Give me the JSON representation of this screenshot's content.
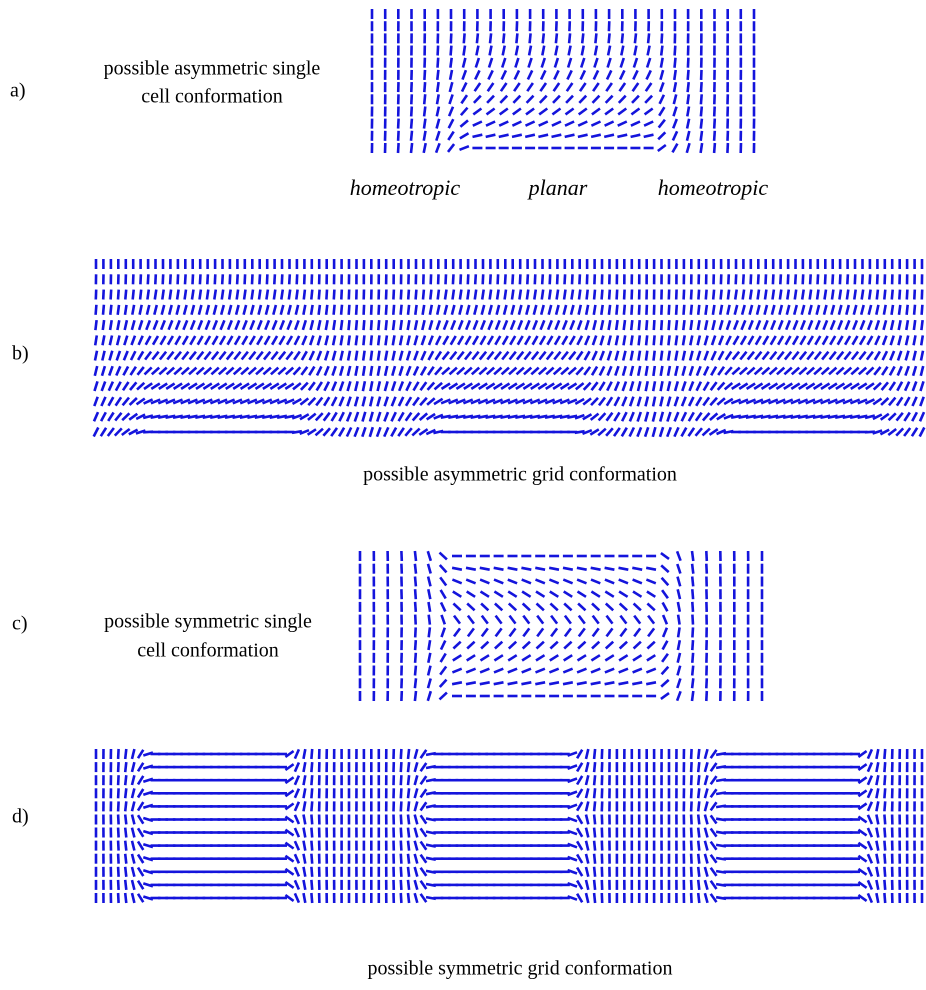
{
  "panels": [
    {
      "letter": "a)",
      "caption": [
        "possible asymmetric single",
        "cell conformation"
      ],
      "regions": [
        "homeotropic",
        "planar",
        "homeotropic"
      ]
    },
    {
      "letter": "b)",
      "caption": [
        "possible asymmetric grid conformation"
      ]
    },
    {
      "letter": "c)",
      "caption": [
        "possible symmetric single",
        "cell conformation"
      ]
    },
    {
      "letter": "d)",
      "caption": [
        "possible symmetric grid conformation"
      ]
    }
  ]
}
